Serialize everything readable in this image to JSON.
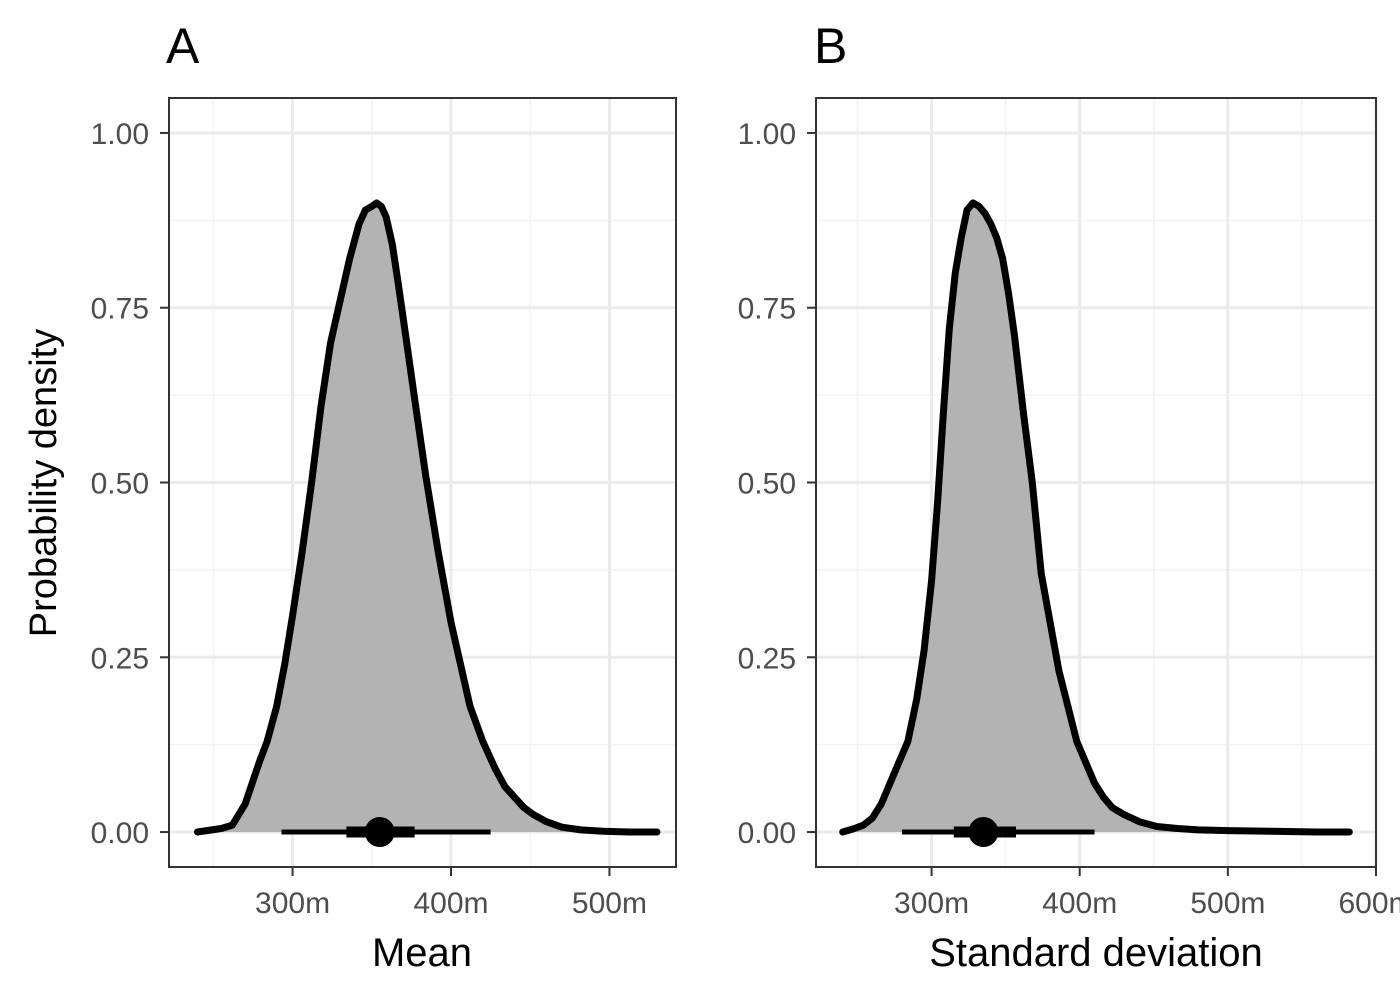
{
  "colors": {
    "background": "#ffffff",
    "panel_border": "#333333",
    "grid_major": "#ebebeb",
    "grid_minor": "#f3f3f3",
    "density_fill": "#b3b3b3",
    "line": "#000000",
    "tick_label": "#4d4d4d",
    "axis_title": "#000000"
  },
  "y_axis_title": "Probability density",
  "chart_data": [
    {
      "type": "area",
      "tag": "A",
      "xlabel": "Mean",
      "xlim": [
        222,
        542
      ],
      "ylim": [
        -0.05,
        1.05
      ],
      "x_ticks": [
        300,
        400,
        500
      ],
      "x_tick_labels": [
        "300m",
        "400m",
        "500m"
      ],
      "y_ticks": [
        0,
        0.25,
        0.5,
        0.75,
        1.0
      ],
      "y_tick_labels": [
        "0.00",
        "0.25",
        "0.50",
        "0.75",
        "1.00"
      ],
      "grid": true,
      "density": {
        "x": [
          240,
          255,
          262,
          270,
          279,
          284,
          290,
          295,
          300,
          306,
          312,
          318,
          324,
          330,
          336,
          342,
          346,
          350,
          353,
          356,
          359,
          363,
          367,
          372,
          377,
          384,
          392,
          400,
          406,
          412,
          420,
          428,
          434,
          440,
          446,
          452,
          460,
          470,
          482,
          496,
          512,
          530
        ],
        "y": [
          0.0,
          0.005,
          0.01,
          0.04,
          0.1,
          0.13,
          0.18,
          0.24,
          0.31,
          0.4,
          0.5,
          0.61,
          0.7,
          0.76,
          0.82,
          0.87,
          0.89,
          0.895,
          0.9,
          0.895,
          0.88,
          0.84,
          0.78,
          0.7,
          0.62,
          0.51,
          0.4,
          0.3,
          0.24,
          0.18,
          0.13,
          0.09,
          0.065,
          0.05,
          0.035,
          0.025,
          0.015,
          0.007,
          0.003,
          0.001,
          0.0,
          0.0
        ]
      },
      "point_estimate": 355,
      "interval_inner": [
        334,
        377
      ],
      "interval_outer": [
        293,
        425
      ]
    },
    {
      "type": "area",
      "tag": "B",
      "xlabel": "Standard deviation",
      "xlim": [
        222,
        600
      ],
      "ylim": [
        -0.05,
        1.05
      ],
      "x_ticks": [
        300,
        400,
        500,
        600
      ],
      "x_tick_labels": [
        "300m",
        "400m",
        "500m",
        "600m"
      ],
      "y_ticks": [
        0,
        0.25,
        0.5,
        0.75,
        1.0
      ],
      "y_tick_labels": [
        "0.00",
        "0.25",
        "0.50",
        "0.75",
        "1.00"
      ],
      "grid": true,
      "density": {
        "x": [
          240,
          248,
          254,
          260,
          266,
          272,
          278,
          284,
          290,
          295,
          300,
          304,
          308,
          312,
          316,
          320,
          324,
          328,
          332,
          336,
          340,
          344,
          348,
          352,
          356,
          362,
          368,
          374,
          380,
          386,
          392,
          398,
          404,
          410,
          416,
          422,
          430,
          440,
          452,
          466,
          480,
          500,
          530,
          560,
          582
        ],
        "y": [
          0.0,
          0.005,
          0.01,
          0.02,
          0.04,
          0.07,
          0.1,
          0.13,
          0.19,
          0.26,
          0.36,
          0.47,
          0.6,
          0.72,
          0.8,
          0.85,
          0.89,
          0.9,
          0.895,
          0.885,
          0.87,
          0.85,
          0.82,
          0.77,
          0.71,
          0.6,
          0.5,
          0.37,
          0.3,
          0.23,
          0.18,
          0.13,
          0.1,
          0.07,
          0.05,
          0.035,
          0.025,
          0.015,
          0.008,
          0.005,
          0.003,
          0.002,
          0.001,
          0.0,
          0.0
        ]
      },
      "point_estimate": 335,
      "interval_inner": [
        315,
        357
      ],
      "interval_outer": [
        280,
        410
      ]
    }
  ]
}
